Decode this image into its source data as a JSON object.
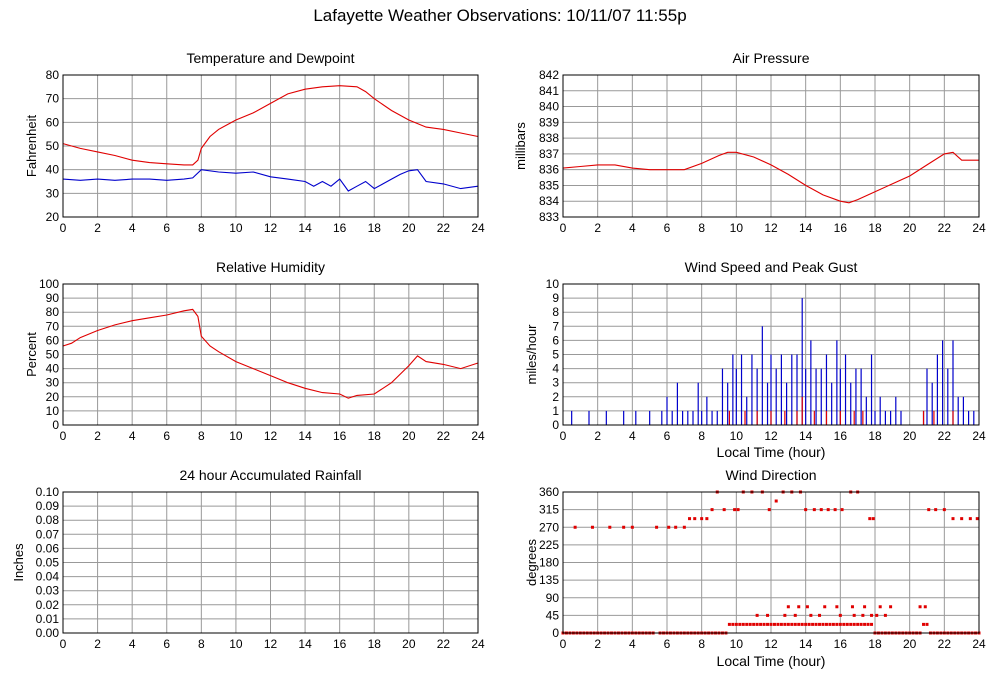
{
  "page": {
    "title": "Lafayette Weather Observations: 10/11/07 11:55p"
  },
  "colors": {
    "red": "#e00000",
    "blue": "#0000cc",
    "grid": "#999999",
    "frame": "#000000"
  },
  "chart_data": [
    {
      "id": "temp",
      "type": "line",
      "title": "Temperature and Dewpoint",
      "ylabel": "Fahrenheit",
      "xlabel": "",
      "xlim": [
        0,
        24
      ],
      "ylim": [
        20,
        80
      ],
      "xticks": [
        0,
        2,
        4,
        6,
        8,
        10,
        12,
        14,
        16,
        18,
        20,
        22,
        24
      ],
      "yticks": [
        20,
        30,
        40,
        50,
        60,
        70,
        80
      ],
      "grid": true,
      "series": [
        {
          "name": "",
          "color": "#e00000",
          "x": [
            0,
            1,
            2,
            3,
            4,
            5,
            6,
            7,
            7.5,
            7.8,
            8,
            8.5,
            9,
            10,
            11,
            12,
            13,
            14,
            15,
            16,
            17,
            17.5,
            18,
            19,
            20,
            21,
            22,
            23,
            24
          ],
          "y": [
            51,
            49,
            47.5,
            46,
            44,
            43,
            42.5,
            42,
            42,
            44,
            49,
            54,
            57,
            61,
            64,
            68,
            72,
            74,
            75,
            75.5,
            75,
            73,
            70,
            65,
            61,
            58,
            57,
            55.5,
            54
          ]
        },
        {
          "name": "",
          "color": "#0000cc",
          "x": [
            0,
            1,
            2,
            3,
            4,
            5,
            6,
            7,
            7.5,
            8,
            9,
            10,
            11,
            12,
            13,
            14,
            14.5,
            15,
            15.5,
            16,
            16.5,
            17,
            17.5,
            18,
            18.5,
            19,
            19.5,
            20,
            20.5,
            21,
            22,
            23,
            24
          ],
          "y": [
            36,
            35.5,
            36,
            35.5,
            36,
            36,
            35.5,
            36,
            36.5,
            40,
            39,
            38.5,
            39,
            37,
            36,
            35,
            33,
            35,
            33,
            36,
            31,
            33,
            35,
            32,
            34,
            36,
            38,
            39.5,
            40,
            35,
            34,
            32,
            33
          ]
        }
      ]
    },
    {
      "id": "pressure",
      "type": "line",
      "title": "Air Pressure",
      "ylabel": "millibars",
      "xlabel": "",
      "xlim": [
        0,
        24
      ],
      "ylim": [
        833,
        842
      ],
      "xticks": [
        0,
        2,
        4,
        6,
        8,
        10,
        12,
        14,
        16,
        18,
        20,
        22,
        24
      ],
      "yticks": [
        833,
        834,
        835,
        836,
        837,
        838,
        839,
        840,
        841,
        842
      ],
      "grid": true,
      "series": [
        {
          "name": "",
          "color": "#e00000",
          "x": [
            0,
            1,
            2,
            3,
            4,
            5,
            6,
            7,
            8,
            9,
            9.5,
            10,
            11,
            12,
            13,
            14,
            15,
            16,
            16.5,
            17,
            18,
            19,
            20,
            21,
            22,
            22.5,
            23,
            24
          ],
          "y": [
            836.1,
            836.2,
            836.3,
            836.3,
            836.1,
            836.0,
            836.0,
            836.0,
            836.4,
            836.9,
            837.1,
            837.1,
            836.8,
            836.3,
            835.7,
            835.0,
            834.4,
            834.0,
            833.9,
            834.1,
            834.6,
            835.1,
            835.6,
            836.3,
            837.0,
            837.1,
            836.6,
            836.6
          ]
        }
      ]
    },
    {
      "id": "humidity",
      "type": "line",
      "title": "Relative Humidity",
      "ylabel": "Percent",
      "xlabel": "",
      "xlim": [
        0,
        24
      ],
      "ylim": [
        0,
        100
      ],
      "xticks": [
        0,
        2,
        4,
        6,
        8,
        10,
        12,
        14,
        16,
        18,
        20,
        22,
        24
      ],
      "yticks": [
        0,
        10,
        20,
        30,
        40,
        50,
        60,
        70,
        80,
        90,
        100
      ],
      "grid": true,
      "series": [
        {
          "name": "",
          "color": "#e00000",
          "x": [
            0,
            0.5,
            1,
            2,
            3,
            4,
            5,
            6,
            7,
            7.5,
            7.8,
            8,
            8.5,
            9,
            10,
            11,
            12,
            13,
            14,
            15,
            16,
            16.5,
            17,
            18,
            19,
            20,
            20.5,
            21,
            22,
            23,
            24
          ],
          "y": [
            56,
            58,
            62,
            67,
            71,
            74,
            76,
            78,
            81,
            82,
            77,
            63,
            56,
            52,
            45,
            40,
            35,
            30,
            26,
            23,
            22,
            19,
            21,
            22,
            30,
            42,
            49,
            45,
            43,
            40,
            44
          ]
        }
      ]
    },
    {
      "id": "wind",
      "type": "bar",
      "title": "Wind Speed and Peak Gust",
      "ylabel": "miles/hour",
      "xlabel": "Local Time (hour)",
      "xlim": [
        0,
        24
      ],
      "ylim": [
        0,
        10
      ],
      "xticks": [
        0,
        2,
        4,
        6,
        8,
        10,
        12,
        14,
        16,
        18,
        20,
        22,
        24
      ],
      "yticks": [
        0,
        1,
        2,
        3,
        4,
        5,
        6,
        7,
        8,
        9,
        10
      ],
      "grid": true,
      "series": [
        {
          "name": "",
          "color": "#0000cc",
          "x": [
            0.5,
            1.5,
            2.5,
            3.5,
            4.2,
            5.0,
            5.7,
            6.0,
            6.3,
            6.6,
            6.9,
            7.2,
            7.5,
            7.8,
            8.0,
            8.3,
            8.6,
            8.9,
            9.2,
            9.5,
            9.8,
            10.0,
            10.3,
            10.6,
            10.9,
            11.2,
            11.5,
            11.8,
            12.0,
            12.3,
            12.6,
            12.9,
            13.2,
            13.5,
            13.8,
            14.0,
            14.3,
            14.6,
            14.9,
            15.2,
            15.5,
            15.8,
            16.0,
            16.3,
            16.6,
            16.9,
            17.2,
            17.5,
            17.8,
            18.0,
            18.3,
            18.6,
            18.9,
            19.2,
            19.5,
            20.8,
            21.0,
            21.3,
            21.6,
            21.9,
            22.2,
            22.5,
            22.8,
            23.1,
            23.4,
            23.7
          ],
          "values": [
            1,
            1,
            1,
            1,
            1,
            1,
            1,
            2,
            1,
            3,
            1,
            1,
            1,
            3,
            1,
            2,
            1,
            1,
            4,
            3,
            5,
            4,
            5,
            2,
            5,
            4,
            7,
            3,
            5,
            4,
            5,
            3,
            5,
            5,
            9,
            4,
            6,
            4,
            4,
            5,
            3,
            6,
            4,
            5,
            3,
            4,
            4,
            2,
            5,
            1,
            2,
            1,
            1,
            2,
            1,
            1,
            4,
            3,
            5,
            6,
            4,
            6,
            2,
            2,
            1,
            1
          ]
        },
        {
          "name": "",
          "color": "#e00000",
          "x": [
            9.6,
            10.5,
            11.2,
            12.0,
            12.8,
            13.5,
            13.8,
            14.5,
            15.2,
            16.0,
            16.8,
            17.3,
            20.8,
            21.4,
            22.5
          ],
          "values": [
            1,
            1,
            1,
            1,
            1,
            1,
            2,
            1,
            1,
            1,
            1,
            1,
            1,
            1,
            1
          ]
        }
      ]
    },
    {
      "id": "rain",
      "type": "line",
      "title": "24 hour Accumulated Rainfall",
      "ylabel": "Inches",
      "xlabel": "",
      "xlim": [
        0,
        24
      ],
      "ylim": [
        0,
        0.1
      ],
      "xticks": [
        0,
        2,
        4,
        6,
        8,
        10,
        12,
        14,
        16,
        18,
        20,
        22,
        24
      ],
      "yticks": [
        "0.00",
        "0.01",
        "0.02",
        "0.03",
        "0.04",
        "0.05",
        "0.06",
        "0.07",
        "0.08",
        "0.09",
        "0.10"
      ],
      "grid": true,
      "series": [
        {
          "name": "",
          "color": "#e00000",
          "x": [
            0,
            24
          ],
          "y": [
            0,
            0
          ]
        }
      ]
    },
    {
      "id": "direction",
      "type": "scatter",
      "title": "Wind Direction",
      "ylabel": "degrees",
      "xlabel": "Local Time (hour)",
      "xlim": [
        0,
        24
      ],
      "ylim": [
        0,
        360
      ],
      "xticks": [
        0,
        2,
        4,
        6,
        8,
        10,
        12,
        14,
        16,
        18,
        20,
        22,
        24
      ],
      "yticks": [
        0,
        45,
        90,
        135,
        180,
        225,
        270,
        315,
        360
      ],
      "grid": true,
      "series": [
        {
          "name": "",
          "color": "#e00000",
          "x": [
            0.0,
            0.2,
            0.4,
            0.6,
            0.8,
            1.0,
            1.2,
            1.4,
            1.6,
            1.8,
            2.0,
            2.2,
            2.4,
            2.6,
            2.8,
            3.0,
            3.2,
            3.4,
            3.6,
            3.8,
            4.0,
            4.2,
            4.4,
            4.6,
            4.8,
            5.0,
            5.2,
            5.6,
            5.8,
            6.0,
            6.2,
            6.4,
            6.6,
            6.8,
            7.0,
            7.2,
            7.4,
            7.6,
            7.8,
            8.0,
            8.2,
            8.4,
            8.6,
            8.8,
            9.0,
            9.2,
            9.4,
            9.6,
            9.8,
            10.0,
            10.2,
            10.4,
            10.6,
            10.8,
            11.0,
            11.2,
            11.4,
            11.6,
            11.8,
            12.0,
            12.2,
            12.4,
            12.6,
            12.8,
            13.0,
            13.2,
            13.4,
            13.6,
            13.8,
            14.0,
            14.2,
            14.4,
            14.6,
            14.8,
            15.0,
            15.2,
            15.4,
            15.6,
            15.8,
            16.0,
            16.2,
            16.4,
            16.6,
            16.8,
            17.0,
            17.2,
            17.4,
            17.6,
            17.8,
            18.0,
            18.2,
            18.4,
            18.6,
            18.8,
            19.0,
            19.2,
            19.4,
            19.6,
            19.8,
            20.0,
            20.2,
            20.4,
            20.6,
            20.8,
            21.0,
            21.2,
            21.4,
            21.6,
            21.8,
            22.0,
            22.2,
            22.4,
            22.6,
            22.8,
            23.0,
            23.2,
            23.4,
            23.6,
            23.8,
            24.0,
            0.7,
            1.7,
            2.7,
            3.5,
            4.0,
            5.4,
            6.1,
            6.5,
            7.0,
            7.3,
            7.6,
            8.0,
            8.3,
            8.6,
            8.9,
            9.3,
            9.9,
            10.1,
            10.4,
            10.9,
            11.5,
            11.9,
            12.3,
            12.7,
            13.2,
            13.7,
            14.0,
            14.5,
            14.9,
            15.3,
            15.7,
            16.1,
            16.6,
            17.0,
            17.7,
            17.9,
            18.3,
            18.9,
            20.6,
            21.1,
            21.5,
            22.0,
            22.5,
            23.0,
            23.5,
            23.9,
            11.2,
            11.8,
            12.8,
            13.4,
            14.3,
            14.8,
            16.0,
            16.8,
            17.3,
            17.8,
            18.1,
            18.6,
            13.0,
            13.6,
            14.1,
            15.1,
            15.8,
            16.7,
            17.4,
            20.9
          ],
          "y": [
            0,
            0,
            0,
            0,
            0,
            0,
            0,
            0,
            0,
            0,
            0,
            0,
            0,
            0,
            0,
            0,
            0,
            0,
            0,
            0,
            0,
            0,
            0,
            0,
            0,
            0,
            0,
            0,
            0,
            0,
            0,
            0,
            0,
            0,
            0,
            0,
            0,
            0,
            0,
            0,
            0,
            0,
            0,
            0,
            0,
            0,
            0,
            22,
            22,
            22,
            22,
            22,
            22,
            22,
            22,
            22,
            22,
            22,
            22,
            22,
            22,
            22,
            22,
            22,
            22,
            22,
            22,
            22,
            22,
            22,
            22,
            22,
            22,
            22,
            22,
            22,
            22,
            22,
            22,
            22,
            22,
            22,
            22,
            22,
            22,
            22,
            22,
            22,
            22,
            0,
            0,
            0,
            0,
            0,
            0,
            0,
            0,
            0,
            0,
            0,
            0,
            0,
            0,
            22,
            22,
            0,
            0,
            0,
            0,
            0,
            0,
            0,
            0,
            0,
            0,
            0,
            0,
            0,
            0,
            0,
            270,
            270,
            270,
            270,
            270,
            270,
            270,
            270,
            270,
            292,
            292,
            292,
            292,
            315,
            360,
            315,
            315,
            315,
            360,
            360,
            360,
            315,
            337,
            360,
            360,
            360,
            315,
            315,
            315,
            315,
            315,
            315,
            360,
            360,
            292,
            292,
            67,
            67,
            67,
            315,
            315,
            315,
            292,
            292,
            292,
            292,
            45,
            45,
            45,
            45,
            45,
            45,
            45,
            45,
            45,
            45,
            45,
            45,
            67,
            67,
            67,
            67,
            67,
            67,
            67,
            67
          ]
        }
      ]
    }
  ]
}
